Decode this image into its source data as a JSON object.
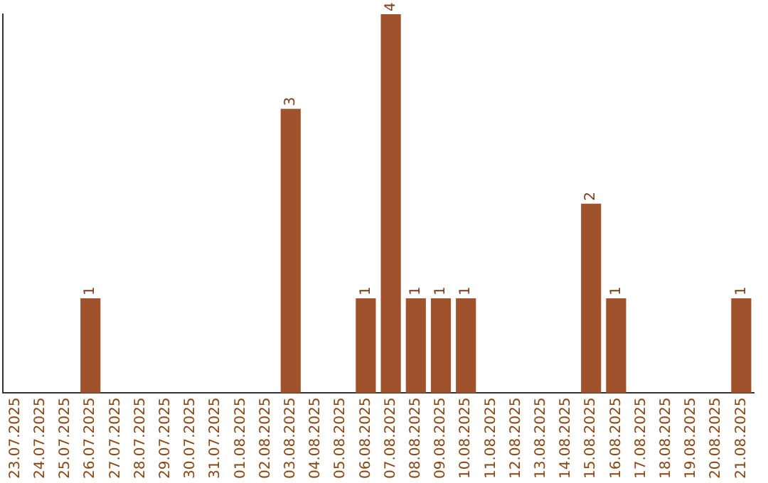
{
  "chart_data": {
    "type": "bar",
    "categories": [
      "23.07.2025",
      "24.07.2025",
      "25.07.2025",
      "26.07.2025",
      "27.07.2025",
      "28.07.2025",
      "29.07.2025",
      "30.07.2025",
      "31.07.2025",
      "01.08.2025",
      "02.08.2025",
      "03.08.2025",
      "04.08.2025",
      "05.08.2025",
      "06.08.2025",
      "07.08.2025",
      "08.08.2025",
      "09.08.2025",
      "10.08.2025",
      "11.08.2025",
      "12.08.2025",
      "13.08.2025",
      "14.08.2025",
      "15.08.2025",
      "16.08.2025",
      "17.08.2025",
      "18.08.2025",
      "19.08.2025",
      "20.08.2025",
      "21.08.2025"
    ],
    "values": [
      0,
      0,
      0,
      1,
      0,
      0,
      0,
      0,
      0,
      0,
      0,
      3,
      0,
      0,
      1,
      4,
      1,
      1,
      1,
      0,
      0,
      0,
      0,
      2,
      1,
      0,
      0,
      0,
      0,
      1
    ],
    "value_labels": [
      null,
      null,
      null,
      "1",
      null,
      null,
      null,
      null,
      null,
      null,
      null,
      "3",
      null,
      null,
      "1",
      "4",
      "1",
      "1",
      "1",
      null,
      null,
      null,
      null,
      "2",
      "1",
      null,
      null,
      null,
      null,
      "1"
    ],
    "color": "#a0522d",
    "grid": false,
    "legend": false,
    "tick_labels": "x"
  }
}
